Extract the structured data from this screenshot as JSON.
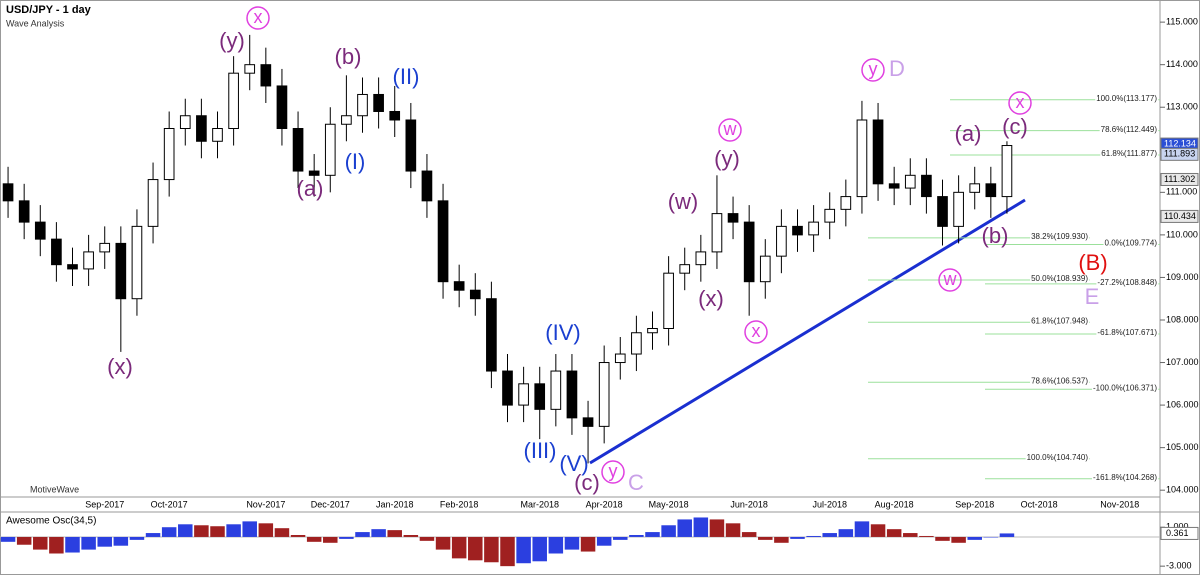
{
  "chart_data": {
    "type": "candlestick",
    "title": "USD/JPY - 1 day",
    "subtitle": "Wave Analysis",
    "watermark": "MotiveWave",
    "categories": [
      null,
      null,
      null,
      null,
      null,
      null,
      "Sep-2017",
      null,
      null,
      null,
      "Oct-2017",
      null,
      null,
      null,
      null,
      null,
      "Nov-2017",
      null,
      null,
      null,
      "Dec-2017",
      null,
      null,
      null,
      "Jan-2018",
      null,
      null,
      null,
      "Feb-2018",
      null,
      null,
      null,
      null,
      "Mar-2018",
      null,
      null,
      null,
      "Apr-2018",
      null,
      null,
      null,
      "May-2018",
      null,
      null,
      null,
      null,
      "Jun-2018",
      null,
      null,
      null,
      null,
      "Jul-2018",
      null,
      null,
      null,
      "Aug-2018",
      null,
      null,
      null,
      null,
      "Sep-2018",
      null,
      null,
      null,
      "Oct-2018",
      null,
      null,
      null,
      null,
      "Nov-2018",
      null,
      null
    ],
    "open": [
      111.2,
      110.8,
      110.3,
      109.9,
      109.3,
      109.2,
      109.6,
      109.8,
      108.5,
      110.2,
      111.3,
      112.5,
      112.8,
      112.2,
      112.5,
      113.8,
      114.0,
      113.5,
      112.5,
      111.5,
      111.4,
      112.6,
      112.8,
      113.3,
      112.9,
      112.7,
      111.5,
      110.8,
      108.9,
      108.7,
      108.5,
      106.8,
      106.0,
      106.5,
      105.9,
      106.8,
      105.7,
      105.5,
      107.0,
      107.2,
      107.7,
      107.8,
      109.1,
      109.3,
      109.6,
      110.5,
      110.3,
      108.9,
      109.5,
      110.2,
      110.0,
      110.3,
      110.6,
      110.9,
      112.7,
      111.2,
      111.1,
      111.4,
      110.9,
      110.2,
      111.0,
      111.2,
      110.9,
      null,
      null,
      null,
      null,
      null,
      null,
      null,
      null,
      null
    ],
    "high": [
      111.6,
      111.2,
      110.7,
      110.3,
      109.7,
      110.0,
      110.2,
      110.2,
      110.6,
      111.7,
      112.9,
      113.2,
      113.2,
      112.9,
      114.2,
      114.7,
      114.4,
      113.9,
      112.9,
      111.9,
      113.0,
      113.75,
      113.7,
      113.7,
      113.5,
      113.1,
      111.9,
      111.2,
      109.3,
      109.1,
      108.9,
      107.2,
      106.9,
      106.9,
      107.2,
      107.2,
      106.1,
      107.4,
      107.6,
      108.1,
      108.2,
      109.5,
      109.7,
      110.0,
      111.4,
      110.9,
      110.7,
      109.9,
      110.6,
      110.6,
      110.7,
      111.0,
      111.3,
      113.15,
      113.1,
      111.6,
      111.8,
      111.8,
      111.3,
      111.4,
      111.6,
      111.6,
      112.2,
      null,
      null,
      null,
      null,
      null,
      null,
      null,
      null,
      null
    ],
    "low": [
      110.4,
      109.9,
      109.5,
      108.9,
      108.8,
      108.8,
      109.2,
      107.25,
      108.1,
      109.8,
      110.9,
      112.1,
      111.8,
      111.8,
      112.1,
      113.4,
      113.1,
      112.1,
      111.1,
      110.9,
      111.0,
      112.2,
      112.4,
      112.5,
      112.3,
      111.1,
      110.4,
      108.5,
      108.3,
      108.1,
      106.4,
      105.6,
      105.6,
      105.2,
      105.5,
      105.3,
      104.63,
      105.1,
      106.6,
      106.8,
      107.3,
      107.4,
      108.7,
      108.9,
      109.2,
      109.9,
      108.1,
      108.5,
      109.1,
      109.6,
      109.6,
      109.9,
      110.2,
      110.5,
      110.8,
      110.7,
      110.7,
      110.5,
      109.75,
      109.8,
      110.6,
      110.4,
      110.5,
      null,
      null,
      null,
      null,
      null,
      null,
      null,
      null,
      null
    ],
    "close": [
      110.8,
      110.3,
      109.9,
      109.3,
      109.2,
      109.6,
      109.8,
      108.5,
      110.2,
      111.3,
      112.5,
      112.8,
      112.2,
      112.5,
      113.8,
      114.0,
      113.5,
      112.5,
      111.5,
      111.4,
      112.6,
      112.8,
      113.3,
      112.9,
      112.7,
      111.5,
      110.8,
      108.9,
      108.7,
      108.5,
      106.8,
      106.0,
      106.5,
      105.9,
      106.8,
      105.7,
      105.5,
      107.0,
      107.2,
      107.7,
      107.8,
      109.1,
      109.3,
      109.6,
      110.5,
      110.3,
      108.9,
      109.5,
      110.2,
      110.0,
      110.3,
      110.6,
      110.9,
      112.7,
      111.2,
      111.1,
      111.4,
      110.9,
      110.2,
      111.0,
      111.2,
      110.9,
      112.1,
      null,
      null,
      null,
      null,
      null,
      null,
      null,
      null,
      null
    ],
    "up_color": "#ffffff",
    "down_color": "#000000",
    "ylim": [
      103.84,
      115.52
    ],
    "yticks": [
      {
        "value": 104,
        "label": "104.000"
      },
      {
        "value": 105,
        "label": "105.000"
      },
      {
        "value": 106,
        "label": "106.000"
      },
      {
        "value": 107,
        "label": "107.000"
      },
      {
        "value": 108,
        "label": "108.000"
      },
      {
        "value": 109,
        "label": "109.000"
      },
      {
        "value": 110,
        "label": "110.000"
      },
      {
        "value": 111,
        "label": "111.000"
      },
      {
        "value": 112,
        "label": "112.000"
      },
      {
        "value": 113,
        "label": "113.000"
      },
      {
        "value": 114,
        "label": "114.000"
      },
      {
        "value": 115,
        "label": "115.000"
      }
    ],
    "price_markers": [
      {
        "value": 112.134,
        "color": "#2b4fd6"
      },
      {
        "value": 111.893,
        "color": "#c8d4f0"
      },
      {
        "value": 111.302,
        "color": "#e8e8e8"
      },
      {
        "value": 110.434,
        "color": "#e8e8e8"
      }
    ],
    "fib_sets": [
      {
        "levels": [
          {
            "value": 113.177,
            "label": "100.0%(113.177)"
          },
          {
            "value": 112.449,
            "label": "78.6%(112.449)"
          },
          {
            "value": 111.877,
            "label": "61.8%(111.877)"
          }
        ]
      },
      {
        "levels": [
          {
            "value": 109.774,
            "label": "0.0%(109.774)"
          },
          {
            "value": 108.848,
            "label": "-27.2%(108.848)"
          },
          {
            "value": 107.671,
            "label": "-61.8%(107.671)"
          },
          {
            "value": 106.371,
            "label": "-100.0%(106.371)"
          },
          {
            "value": 104.268,
            "label": "-161.8%(104.268)"
          }
        ]
      },
      {
        "levels": [
          {
            "value": 109.93,
            "label": "38.2%(109.930)"
          },
          {
            "value": 108.939,
            "label": "50.0%(108.939)"
          },
          {
            "value": 107.948,
            "label": "61.8%(107.948)"
          },
          {
            "value": 106.537,
            "label": "78.6%(106.537)"
          },
          {
            "value": 104.74,
            "label": "100.0%(104.740)"
          }
        ]
      }
    ],
    "annotations": [
      {
        "text": "(y)",
        "color": "#7b2a7b"
      },
      {
        "text": "x",
        "color": "#e040e0"
      },
      {
        "text": "(b)",
        "color": "#7b2a7b"
      },
      {
        "text": "(II)",
        "color": "#1a3fd0"
      },
      {
        "text": "(I)",
        "color": "#1a3fd0"
      },
      {
        "text": "(a)",
        "color": "#7b2a7b"
      },
      {
        "text": "(x)",
        "color": "#7b2a7b"
      },
      {
        "text": "y",
        "color": "#e040e0"
      },
      {
        "text": "D",
        "color": "#c9a0e8"
      },
      {
        "text": "x",
        "color": "#e040e0"
      },
      {
        "text": "(a)",
        "color": "#7b2a7b"
      },
      {
        "text": "(c)",
        "color": "#7b2a7b"
      },
      {
        "text": "w",
        "color": "#e040e0"
      },
      {
        "text": "(y)",
        "color": "#7b2a7b"
      },
      {
        "text": "(w)",
        "color": "#7b2a7b"
      },
      {
        "text": "(x)",
        "color": "#7b2a7b"
      },
      {
        "text": "x",
        "color": "#e040e0"
      },
      {
        "text": "(b)",
        "color": "#7b2a7b"
      },
      {
        "text": "w",
        "color": "#e040e0"
      },
      {
        "text": "(B)",
        "color": "#e01010"
      },
      {
        "text": "E",
        "color": "#c9a0e8"
      },
      {
        "text": "(IV)",
        "color": "#1a3fd0"
      },
      {
        "text": "(III)",
        "color": "#1a3fd0"
      },
      {
        "text": "(V)",
        "color": "#1a3fd0"
      },
      {
        "text": "(c)",
        "color": "#7b2a7b"
      },
      {
        "text": "y",
        "color": "#e040e0"
      },
      {
        "text": "C",
        "color": "#c9a0e8"
      }
    ],
    "oscillator": {
      "title": "Awesome Osc(34,5)",
      "values": [
        -0.5,
        -0.8,
        -1.3,
        -1.7,
        -1.6,
        -1.3,
        -1.0,
        -0.9,
        -0.3,
        0.4,
        1.0,
        1.3,
        1.2,
        1.1,
        1.3,
        1.6,
        1.4,
        0.9,
        0.2,
        -0.5,
        -0.6,
        -0.2,
        0.5,
        0.8,
        0.7,
        0.2,
        -0.4,
        -1.3,
        -2.2,
        -2.4,
        -2.6,
        -3.0,
        -2.7,
        -2.5,
        -1.7,
        -1.3,
        -1.5,
        -0.9,
        -0.3,
        0.2,
        0.5,
        1.2,
        1.8,
        2.0,
        1.8,
        1.4,
        0.5,
        -0.3,
        -0.6,
        -0.2,
        0.1,
        0.4,
        0.8,
        1.6,
        1.3,
        0.8,
        0.4,
        0.1,
        -0.4,
        -0.6,
        -0.3,
        0.0,
        0.361,
        null,
        null,
        null,
        null,
        null,
        null,
        null,
        null,
        null
      ],
      "up_color": "#2b3fe0",
      "down_color": "#a02020",
      "ylim": [
        -3.6,
        2.46
      ],
      "yticks": [
        {
          "value": 1,
          "label": "1.000"
        },
        {
          "value": -3,
          "label": "-3.000"
        }
      ],
      "marker": 0.361
    }
  }
}
